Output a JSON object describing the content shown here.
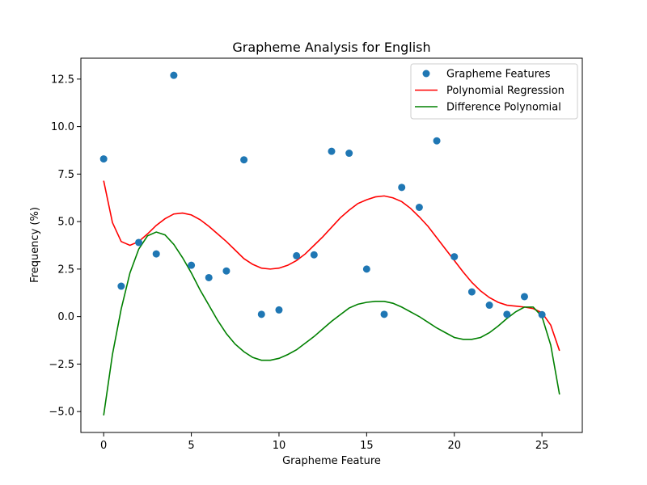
{
  "chart_data": {
    "type": "scatter",
    "title": "Grapheme Analysis for English",
    "xlabel": "Grapheme Feature",
    "ylabel": "Frequency (%)",
    "xlim": [
      -1.3,
      27.3
    ],
    "ylim": [
      -6.1,
      13.6
    ],
    "xticks": [
      0,
      5,
      10,
      15,
      20,
      25
    ],
    "xtick_labels": [
      "0",
      "5",
      "10",
      "15",
      "20",
      "25"
    ],
    "yticks": [
      -5.0,
      -2.5,
      0.0,
      2.5,
      5.0,
      7.5,
      10.0,
      12.5
    ],
    "ytick_labels": [
      "−5.0",
      "−2.5",
      "0.0",
      "2.5",
      "5.0",
      "7.5",
      "10.0",
      "12.5"
    ],
    "grid": false,
    "legend_position": "top-right",
    "series": [
      {
        "name": "Grapheme Features",
        "kind": "scatter",
        "color": "#1f77b4",
        "x": [
          0,
          1,
          2,
          3,
          4,
          5,
          6,
          7,
          8,
          9,
          10,
          11,
          12,
          13,
          14,
          15,
          16,
          17,
          18,
          19,
          20,
          21,
          22,
          23,
          24,
          25
        ],
        "y": [
          8.3,
          1.6,
          3.9,
          3.3,
          12.7,
          2.7,
          2.05,
          2.4,
          8.25,
          0.12,
          0.35,
          3.2,
          3.25,
          8.7,
          8.6,
          2.5,
          0.12,
          6.8,
          5.75,
          9.25,
          3.15,
          1.3,
          0.6,
          0.12,
          1.05,
          0.1
        ]
      },
      {
        "name": "Polynomial Regression",
        "kind": "line",
        "color": "#ff0000",
        "x": [
          0,
          0.5,
          1,
          1.5,
          2,
          2.5,
          3,
          3.5,
          4,
          4.5,
          5,
          5.5,
          6,
          6.5,
          7,
          7.5,
          8,
          8.5,
          9,
          9.5,
          10,
          10.5,
          11,
          11.5,
          12,
          12.5,
          13,
          13.5,
          14,
          14.5,
          15,
          15.5,
          16,
          16.5,
          17,
          17.5,
          18,
          18.5,
          19,
          19.5,
          20,
          20.5,
          21,
          21.5,
          22,
          22.5,
          23,
          23.5,
          24,
          24.5,
          25,
          25.5,
          26
        ],
        "y": [
          7.15,
          4.95,
          3.95,
          3.75,
          3.95,
          4.35,
          4.8,
          5.15,
          5.4,
          5.45,
          5.35,
          5.1,
          4.75,
          4.35,
          3.95,
          3.5,
          3.05,
          2.75,
          2.55,
          2.5,
          2.55,
          2.7,
          2.95,
          3.3,
          3.75,
          4.2,
          4.7,
          5.2,
          5.6,
          5.95,
          6.15,
          6.3,
          6.35,
          6.25,
          6.05,
          5.7,
          5.25,
          4.75,
          4.15,
          3.55,
          2.95,
          2.35,
          1.8,
          1.35,
          1.0,
          0.75,
          0.6,
          0.55,
          0.5,
          0.42,
          0.2,
          -0.45,
          -1.8
        ]
      },
      {
        "name": "Difference Polynomial",
        "kind": "line",
        "color": "#008000",
        "x": [
          0,
          0.5,
          1,
          1.5,
          2,
          2.5,
          3,
          3.5,
          4,
          4.5,
          5,
          5.5,
          6,
          6.5,
          7,
          7.5,
          8,
          8.5,
          9,
          9.5,
          10,
          10.5,
          11,
          11.5,
          12,
          12.5,
          13,
          13.5,
          14,
          14.5,
          15,
          15.5,
          16,
          16.5,
          17,
          17.5,
          18,
          18.5,
          19,
          19.5,
          20,
          20.5,
          21,
          21.5,
          22,
          22.5,
          23,
          23.5,
          24,
          24.5,
          25,
          25.5,
          26
        ],
        "y": [
          -5.2,
          -2.0,
          0.4,
          2.3,
          3.55,
          4.25,
          4.45,
          4.3,
          3.8,
          3.1,
          2.3,
          1.4,
          0.6,
          -0.2,
          -0.9,
          -1.45,
          -1.85,
          -2.15,
          -2.3,
          -2.3,
          -2.2,
          -2.0,
          -1.75,
          -1.4,
          -1.05,
          -0.65,
          -0.25,
          0.1,
          0.45,
          0.65,
          0.75,
          0.8,
          0.8,
          0.7,
          0.5,
          0.25,
          0.0,
          -0.3,
          -0.6,
          -0.85,
          -1.1,
          -1.2,
          -1.2,
          -1.1,
          -0.85,
          -0.5,
          -0.1,
          0.25,
          0.5,
          0.5,
          0.0,
          -1.5,
          -4.1
        ]
      }
    ]
  }
}
